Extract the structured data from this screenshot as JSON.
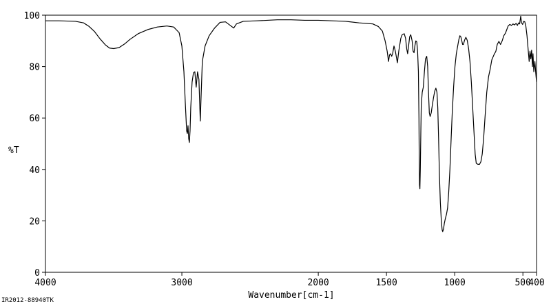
{
  "chart_data": {
    "type": "line",
    "xlabel": "Wavenumber[cm-1]",
    "ylabel": "%T",
    "xlim": [
      4000,
      400
    ],
    "ylim": [
      0,
      100
    ],
    "x_reversed": true,
    "grid": false,
    "x_ticks": [
      {
        "value": 4000,
        "label": "4000"
      },
      {
        "value": 3000,
        "label": "3000"
      },
      {
        "value": 2000,
        "label": "2000"
      },
      {
        "value": 1500,
        "label": "1500"
      },
      {
        "value": 1000,
        "label": "1000"
      },
      {
        "value": 500,
        "label": "500"
      },
      {
        "value": 400,
        "label": "400"
      }
    ],
    "y_ticks": [
      {
        "value": 0,
        "label": "0"
      },
      {
        "value": 20,
        "label": "20"
      },
      {
        "value": 40,
        "label": "40"
      },
      {
        "value": 60,
        "label": "60"
      },
      {
        "value": 80,
        "label": "80"
      },
      {
        "value": 100,
        "label": "100"
      }
    ],
    "series": [
      {
        "points": [
          [
            4000,
            97.8
          ],
          [
            3900,
            97.8
          ],
          [
            3780,
            97.6
          ],
          [
            3720,
            97.0
          ],
          [
            3680,
            95.6
          ],
          [
            3640,
            93.6
          ],
          [
            3600,
            90.8
          ],
          [
            3560,
            88.4
          ],
          [
            3530,
            87.2
          ],
          [
            3500,
            87.0
          ],
          [
            3460,
            87.4
          ],
          [
            3420,
            88.8
          ],
          [
            3380,
            90.6
          ],
          [
            3320,
            92.8
          ],
          [
            3250,
            94.4
          ],
          [
            3180,
            95.4
          ],
          [
            3110,
            95.8
          ],
          [
            3060,
            95.4
          ],
          [
            3020,
            93.2
          ],
          [
            3000,
            88.0
          ],
          [
            2985,
            78.0
          ],
          [
            2975,
            66.0
          ],
          [
            2965,
            55.0
          ],
          [
            2960,
            54.0
          ],
          [
            2955,
            57.0
          ],
          [
            2950,
            52.0
          ],
          [
            2945,
            50.5
          ],
          [
            2940,
            55.0
          ],
          [
            2935,
            64.0
          ],
          [
            2925,
            74.0
          ],
          [
            2915,
            77.6
          ],
          [
            2905,
            78.0
          ],
          [
            2895,
            72.0
          ],
          [
            2885,
            78.0
          ],
          [
            2875,
            75.0
          ],
          [
            2865,
            58.8
          ],
          [
            2858,
            70.0
          ],
          [
            2850,
            82.0
          ],
          [
            2830,
            88.0
          ],
          [
            2800,
            92.0
          ],
          [
            2760,
            95.0
          ],
          [
            2720,
            97.2
          ],
          [
            2680,
            97.4
          ],
          [
            2640,
            95.8
          ],
          [
            2620,
            95.0
          ],
          [
            2600,
            96.6
          ],
          [
            2550,
            97.6
          ],
          [
            2450,
            97.8
          ],
          [
            2300,
            98.2
          ],
          [
            2200,
            98.2
          ],
          [
            2100,
            98.0
          ],
          [
            2000,
            98.0
          ],
          [
            1900,
            97.8
          ],
          [
            1800,
            97.6
          ],
          [
            1700,
            97.0
          ],
          [
            1600,
            96.6
          ],
          [
            1560,
            95.6
          ],
          [
            1530,
            93.8
          ],
          [
            1510,
            90.0
          ],
          [
            1495,
            86.0
          ],
          [
            1485,
            82.0
          ],
          [
            1478,
            84.5
          ],
          [
            1470,
            85.0
          ],
          [
            1462,
            84.0
          ],
          [
            1455,
            85.0
          ],
          [
            1445,
            88.0
          ],
          [
            1435,
            86.0
          ],
          [
            1420,
            81.5
          ],
          [
            1410,
            86.0
          ],
          [
            1395,
            91.0
          ],
          [
            1385,
            92.4
          ],
          [
            1370,
            92.8
          ],
          [
            1360,
            91.0
          ],
          [
            1352,
            87.0
          ],
          [
            1345,
            85.0
          ],
          [
            1338,
            88.0
          ],
          [
            1330,
            91.6
          ],
          [
            1322,
            92.4
          ],
          [
            1312,
            90.0
          ],
          [
            1305,
            86.0
          ],
          [
            1298,
            85.4
          ],
          [
            1292,
            88.0
          ],
          [
            1285,
            90.0
          ],
          [
            1278,
            89.6
          ],
          [
            1272,
            86.0
          ],
          [
            1266,
            78.0
          ],
          [
            1262,
            60.0
          ],
          [
            1260,
            45.0
          ],
          [
            1258,
            34.0
          ],
          [
            1255,
            32.5
          ],
          [
            1252,
            40.0
          ],
          [
            1248,
            55.0
          ],
          [
            1245,
            65.0
          ],
          [
            1238,
            70.0
          ],
          [
            1230,
            72.0
          ],
          [
            1222,
            78.0
          ],
          [
            1214,
            83.0
          ],
          [
            1205,
            84.0
          ],
          [
            1198,
            80.0
          ],
          [
            1192,
            70.0
          ],
          [
            1186,
            62.0
          ],
          [
            1180,
            60.6
          ],
          [
            1172,
            62.0
          ],
          [
            1164,
            65.0
          ],
          [
            1155,
            68.0
          ],
          [
            1146,
            70.5
          ],
          [
            1138,
            71.6
          ],
          [
            1130,
            70.0
          ],
          [
            1124,
            64.0
          ],
          [
            1118,
            52.0
          ],
          [
            1112,
            38.0
          ],
          [
            1105,
            27.0
          ],
          [
            1098,
            20.0
          ],
          [
            1092,
            16.5
          ],
          [
            1088,
            15.8
          ],
          [
            1082,
            16.8
          ],
          [
            1076,
            19.0
          ],
          [
            1068,
            21.0
          ],
          [
            1060,
            22.6
          ],
          [
            1052,
            25.0
          ],
          [
            1044,
            31.0
          ],
          [
            1035,
            40.0
          ],
          [
            1026,
            52.0
          ],
          [
            1018,
            62.0
          ],
          [
            1008,
            72.0
          ],
          [
            998,
            80.0
          ],
          [
            988,
            85.0
          ],
          [
            978,
            88.0
          ],
          [
            970,
            90.4
          ],
          [
            962,
            92.0
          ],
          [
            955,
            91.6
          ],
          [
            948,
            90.0
          ],
          [
            942,
            88.6
          ],
          [
            936,
            88.6
          ],
          [
            928,
            90.2
          ],
          [
            918,
            91.4
          ],
          [
            908,
            90.2
          ],
          [
            898,
            87.0
          ],
          [
            888,
            82.0
          ],
          [
            878,
            74.0
          ],
          [
            868,
            64.0
          ],
          [
            858,
            54.0
          ],
          [
            850,
            46.0
          ],
          [
            842,
            42.4
          ],
          [
            830,
            42.0
          ],
          [
            818,
            42.0
          ],
          [
            808,
            43.0
          ],
          [
            798,
            46.0
          ],
          [
            788,
            52.0
          ],
          [
            778,
            60.0
          ],
          [
            765,
            70.0
          ],
          [
            752,
            76.0
          ],
          [
            740,
            79.0
          ],
          [
            728,
            82.6
          ],
          [
            712,
            84.6
          ],
          [
            698,
            86.0
          ],
          [
            688,
            88.6
          ],
          [
            676,
            89.8
          ],
          [
            664,
            88.6
          ],
          [
            652,
            90.0
          ],
          [
            640,
            92.0
          ],
          [
            628,
            93.0
          ],
          [
            618,
            94.4
          ],
          [
            608,
            95.8
          ],
          [
            596,
            96.4
          ],
          [
            584,
            96.0
          ],
          [
            572,
            96.6
          ],
          [
            562,
            96.2
          ],
          [
            550,
            96.8
          ],
          [
            540,
            96.0
          ],
          [
            532,
            97.0
          ],
          [
            524,
            96.6
          ],
          [
            516,
            99.6
          ],
          [
            510,
            97.0
          ],
          [
            502,
            96.4
          ],
          [
            494,
            97.6
          ],
          [
            486,
            97.4
          ],
          [
            478,
            95.6
          ],
          [
            470,
            92.0
          ],
          [
            462,
            87.0
          ],
          [
            454,
            82.0
          ],
          [
            448,
            86.0
          ],
          [
            442,
            83.0
          ],
          [
            436,
            86.4
          ],
          [
            430,
            80.0
          ],
          [
            426,
            85.0
          ],
          [
            420,
            78.0
          ],
          [
            412,
            82.0
          ],
          [
            405,
            77.0
          ],
          [
            400,
            74.0
          ]
        ]
      }
    ],
    "annotations": [
      "IR2012-88940TK"
    ]
  }
}
